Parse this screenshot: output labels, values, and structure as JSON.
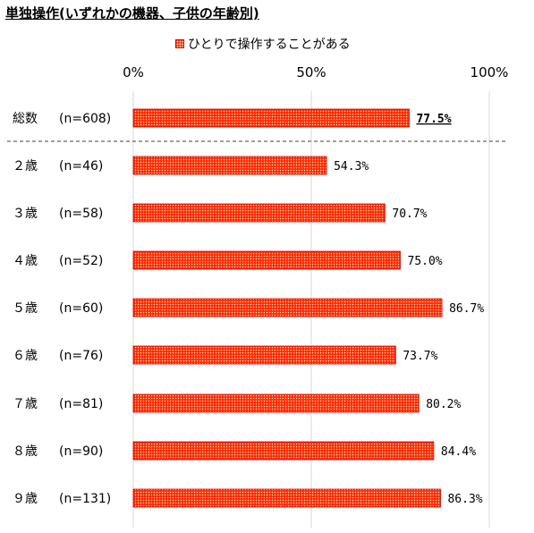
{
  "chart_data": {
    "type": "bar",
    "orientation": "horizontal",
    "title": "単独操作(いずれかの機器、子供の年齢別)",
    "legend": {
      "position": "top",
      "entries": [
        "ひとりで操作することがある"
      ]
    },
    "x_axis": {
      "min": 0,
      "max": 100,
      "ticks": [
        "0%",
        "50%",
        "100%"
      ]
    },
    "grid": true,
    "series": [
      {
        "name": "ひとりで操作することがある",
        "color": "#ff2a00"
      }
    ],
    "rows": [
      {
        "label": "総数",
        "n": "(n=608)",
        "value": 77.5,
        "value_label": "77.5%"
      },
      {
        "label": "２歳",
        "n": "(n=46)",
        "value": 54.3,
        "value_label": "54.3%"
      },
      {
        "label": "３歳",
        "n": "(n=58)",
        "value": 70.7,
        "value_label": "70.7%"
      },
      {
        "label": "４歳",
        "n": "(n=52)",
        "value": 75.0,
        "value_label": "75.0%"
      },
      {
        "label": "５歳",
        "n": "(n=60)",
        "value": 86.7,
        "value_label": "86.7%"
      },
      {
        "label": "６歳",
        "n": "(n=76)",
        "value": 73.7,
        "value_label": "73.7%"
      },
      {
        "label": "７歳",
        "n": "(n=81)",
        "value": 80.2,
        "value_label": "80.2%"
      },
      {
        "label": "８歳",
        "n": "(n=90)",
        "value": 84.4,
        "value_label": "84.4%"
      },
      {
        "label": "９歳",
        "n": "(n=131)",
        "value": 86.3,
        "value_label": "86.3%"
      }
    ]
  }
}
